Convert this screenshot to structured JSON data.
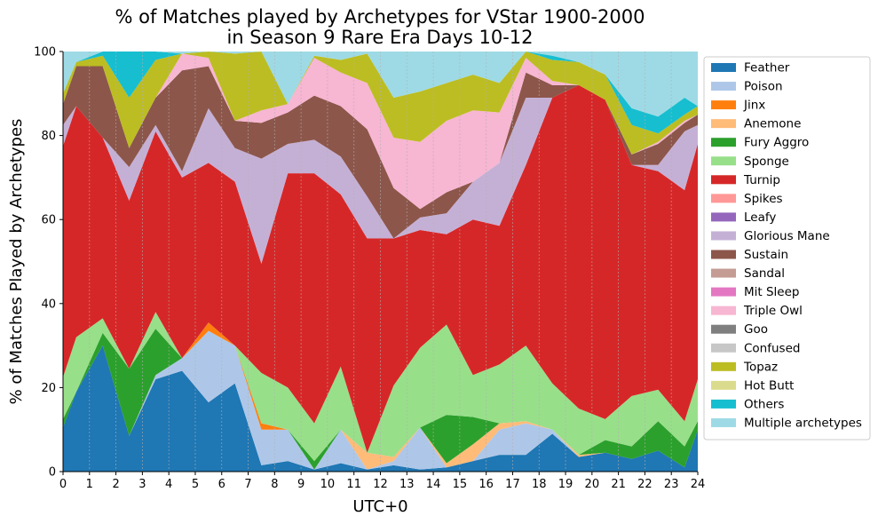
{
  "chart_data": {
    "type": "area",
    "stacked": true,
    "title": [
      "% of Matches played by Archetypes for VStar 1900-2000",
      "in Season 9 Rare Era Days 10-12"
    ],
    "xlabel": "UTC+0",
    "ylabel": "% of Matches Played by Archetypes",
    "xlim": [
      0,
      24
    ],
    "ylim": [
      0,
      100
    ],
    "xticks": [
      0,
      1,
      2,
      3,
      4,
      5,
      6,
      7,
      8,
      9,
      10,
      11,
      12,
      13,
      14,
      15,
      16,
      17,
      18,
      19,
      20,
      21,
      22,
      23,
      24
    ],
    "yticks": [
      0,
      20,
      40,
      60,
      80,
      100
    ],
    "grid": "vertical dashed",
    "legend_position": "right, outside plot",
    "x": [
      0,
      0.5,
      1.5,
      2.5,
      3.5,
      4.5,
      5.5,
      6.5,
      7.5,
      8.5,
      9.5,
      10.5,
      11.5,
      12.5,
      13.5,
      14.5,
      15.5,
      16.5,
      17.5,
      18.5,
      19.5,
      20.5,
      21.5,
      22.5,
      23.5,
      24
    ],
    "series": [
      {
        "name": "Feather",
        "color": "#1f77b4",
        "values": [
          10.5,
          19,
          30,
          8.5,
          22,
          24,
          16.5,
          21,
          1.5,
          2.5,
          0.5,
          2,
          0.5,
          1.5,
          0.5,
          1,
          2.5,
          4,
          4,
          9,
          3.5,
          4.5,
          3,
          5,
          1,
          10
        ]
      },
      {
        "name": "Poison",
        "color": "#aec7e8",
        "values": [
          0,
          0,
          0,
          0,
          1,
          3,
          17,
          9,
          8.5,
          7.5,
          0,
          8,
          0,
          1,
          10,
          0,
          0,
          6,
          7.5,
          1,
          0,
          0,
          0,
          0,
          0,
          0
        ]
      },
      {
        "name": "Jinx",
        "color": "#ff7f0e",
        "values": [
          0,
          0,
          0,
          0,
          0,
          0,
          2,
          0,
          1.5,
          0,
          0,
          0,
          0,
          0,
          0,
          0,
          0,
          0,
          0,
          0,
          0,
          0,
          0,
          0,
          0,
          0
        ]
      },
      {
        "name": "Anemone",
        "color": "#ffbb78",
        "values": [
          0,
          0,
          0,
          0,
          0,
          0,
          0,
          0,
          0,
          0,
          0,
          0,
          4,
          1,
          0,
          1,
          4,
          1.5,
          0.5,
          0,
          0.5,
          0,
          0,
          0,
          0,
          0
        ]
      },
      {
        "name": "Fury Aggro",
        "color": "#2ca02c",
        "values": [
          2,
          0,
          3,
          16,
          11,
          0,
          0,
          0,
          0,
          0,
          2,
          0,
          0,
          0,
          0,
          11.5,
          6.5,
          0,
          0,
          0,
          0,
          3,
          3,
          7,
          5,
          2
        ]
      },
      {
        "name": "Sponge",
        "color": "#98df8a",
        "values": [
          10,
          13,
          3.5,
          0,
          4,
          0,
          0,
          0,
          12,
          10,
          9,
          15,
          0,
          17,
          19,
          21.5,
          10,
          14,
          18,
          11,
          11,
          5,
          12,
          7.5,
          6,
          10
        ]
      },
      {
        "name": "Turnip",
        "color": "#d62728",
        "values": [
          55,
          55,
          43,
          40,
          43,
          43,
          38,
          39,
          26,
          51,
          59.5,
          41,
          51,
          35,
          28,
          21.5,
          37,
          33,
          43,
          68,
          77,
          76,
          55,
          52,
          55,
          56
        ]
      },
      {
        "name": "Spikes",
        "color": "#ff9896",
        "values": [
          0,
          0,
          0,
          0,
          0,
          0,
          0,
          0,
          0,
          0,
          0,
          0,
          0,
          0,
          0,
          0,
          0,
          0,
          0,
          0,
          0,
          0,
          0,
          0,
          0,
          0
        ]
      },
      {
        "name": "Leafy",
        "color": "#9467bd",
        "values": [
          0,
          0,
          0,
          0,
          0,
          0,
          0,
          0,
          0,
          0,
          0,
          0,
          0,
          0,
          0,
          0,
          0,
          0,
          0,
          0,
          0,
          0,
          0,
          0,
          0,
          0
        ]
      },
      {
        "name": "Glorious Mane",
        "color": "#c5b0d5",
        "values": [
          5,
          0,
          0,
          8,
          1.5,
          1.5,
          13,
          8,
          25,
          7,
          8,
          9,
          10,
          0,
          3,
          5,
          9,
          15,
          16,
          0,
          0,
          0,
          0,
          1.5,
          14,
          4.5
        ]
      },
      {
        "name": "Sustain",
        "color": "#8c564b",
        "values": [
          5,
          9.5,
          17,
          4.5,
          6.5,
          24,
          10,
          6.5,
          8.5,
          7.5,
          10.5,
          12,
          16,
          12,
          2,
          5,
          0,
          0,
          6,
          3,
          0,
          0,
          2.5,
          5,
          2,
          2.5
        ]
      },
      {
        "name": "Sandal",
        "color": "#c49c94",
        "values": [
          0,
          0,
          0,
          0,
          0,
          0,
          0,
          0,
          0,
          0,
          0,
          0,
          0,
          0,
          0,
          0,
          0,
          0,
          0,
          0,
          0,
          0,
          0,
          0,
          0,
          0
        ]
      },
      {
        "name": "Mit Sleep",
        "color": "#e377c2",
        "values": [
          0,
          0,
          0,
          0,
          0,
          0,
          0,
          0,
          0,
          0,
          0,
          0,
          0,
          0,
          0,
          0,
          0,
          0,
          0,
          0,
          0,
          0,
          0,
          0,
          0,
          0
        ]
      },
      {
        "name": "Triple Owl",
        "color": "#f7b6d2",
        "values": [
          0,
          0,
          0,
          0,
          0,
          4,
          2,
          0,
          3,
          2,
          9,
          8,
          11,
          12,
          16,
          17,
          17,
          12,
          3.5,
          1,
          0,
          0,
          0,
          0.5,
          0.5,
          0
        ]
      },
      {
        "name": "Goo",
        "color": "#7f7f7f",
        "values": [
          0,
          0,
          0,
          0,
          0,
          0,
          0,
          0,
          0,
          0,
          0,
          0,
          0,
          0,
          0,
          0,
          0,
          0,
          0,
          0,
          0,
          0,
          0,
          0,
          0,
          0
        ]
      },
      {
        "name": "Confused",
        "color": "#c7c7c7",
        "values": [
          0,
          0,
          0,
          0,
          0,
          0,
          0,
          0,
          0,
          0,
          0,
          0,
          0,
          0,
          0,
          0,
          0,
          0,
          0,
          0,
          0,
          0,
          0,
          0,
          0,
          0
        ]
      },
      {
        "name": "Topaz",
        "color": "#bcbd22",
        "values": [
          2.5,
          1,
          2.5,
          12,
          9,
          0,
          1.5,
          16,
          15,
          0,
          0.5,
          3,
          7,
          9.5,
          12,
          9,
          8.5,
          7,
          6,
          5,
          5.5,
          6,
          7,
          2,
          1.5,
          2
        ]
      },
      {
        "name": "Hot Butt",
        "color": "#dbdb8d",
        "values": [
          0,
          0,
          0,
          0,
          0,
          0,
          0,
          0,
          0,
          0,
          0,
          0,
          0,
          0,
          0,
          0,
          0,
          0,
          0,
          0,
          0,
          0,
          0,
          0,
          0,
          0
        ]
      },
      {
        "name": "Others",
        "color": "#17becf",
        "values": [
          0,
          0,
          1,
          11,
          2,
          0,
          0,
          0,
          0,
          0,
          0,
          0,
          0,
          0,
          0,
          0,
          0,
          0,
          0.5,
          1,
          0,
          0,
          4,
          4,
          4,
          0
        ]
      },
      {
        "name": "Multiple archetypes",
        "color": "#9edae5",
        "values": [
          10,
          2.5,
          0,
          0,
          0,
          0.5,
          0,
          0.5,
          -1,
          12.5,
          1,
          2,
          0.5,
          11,
          9.5,
          9,
          5.5,
          7.5,
          0.5,
          1,
          2.5,
          5.5,
          13.5,
          15.5,
          15,
          13
        ]
      }
    ]
  }
}
